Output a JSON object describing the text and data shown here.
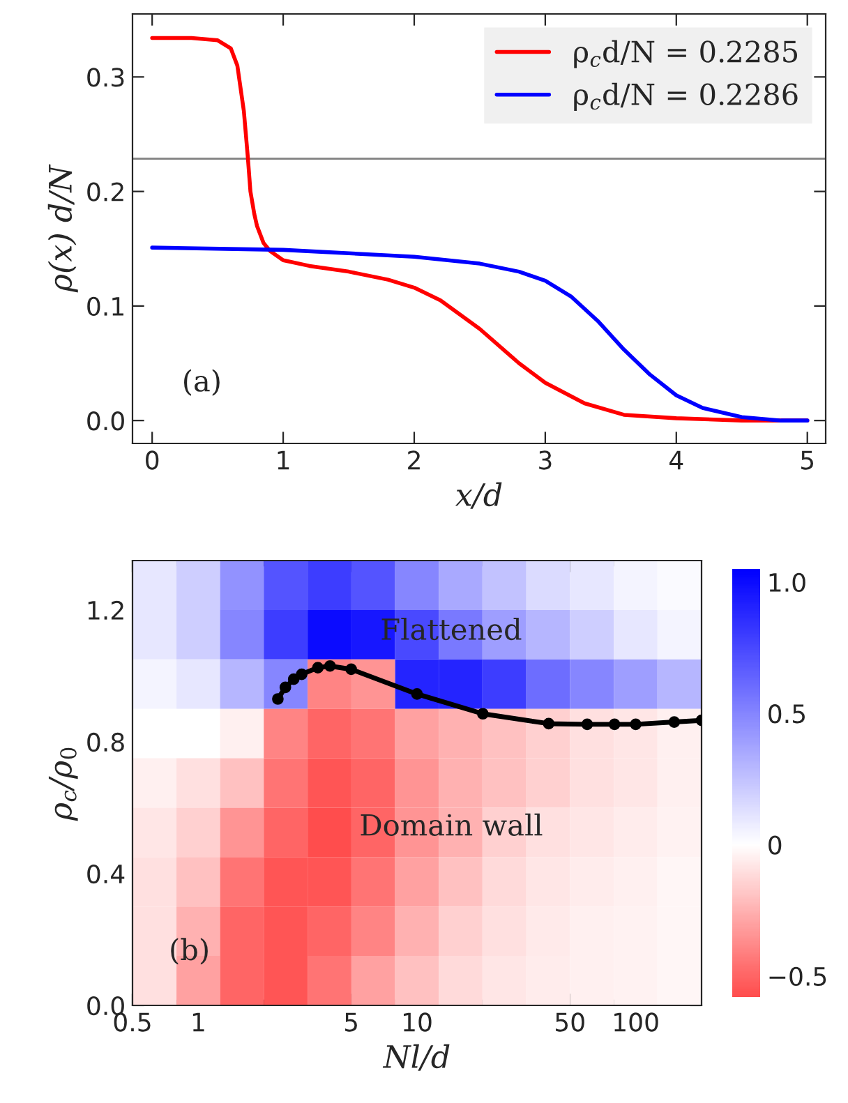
{
  "chart_data": [
    {
      "type": "line",
      "xlabel": "x/d",
      "ylabel": "ρ(x) d/N",
      "xlim": [
        -0.15,
        5.14
      ],
      "ylim": [
        -0.02,
        0.355
      ],
      "xticks": [
        0,
        1,
        2,
        3,
        4,
        5
      ],
      "yticks": [
        {
          "value": 0,
          "label": "0.0"
        },
        0.1,
        0.2,
        0.3
      ],
      "legend": "top right",
      "grid": false,
      "ref_lines": [
        {
          "axis": "y",
          "value": 0.2286,
          "color": "#808080"
        }
      ],
      "annotations": [
        "(a)"
      ],
      "series": [
        {
          "name": "ρ$_{c}$d/N = 0.2285",
          "color": "#ff0000",
          "x": [
            0,
            0.3,
            0.5,
            0.6,
            0.65,
            0.7,
            0.73,
            0.75,
            0.78,
            0.8,
            0.85,
            0.9,
            1.0,
            1.2,
            1.5,
            1.8,
            2.0,
            2.2,
            2.5,
            2.8,
            3.0,
            3.3,
            3.6,
            4.0,
            4.5,
            5.0
          ],
          "values": [
            0.334,
            0.334,
            0.332,
            0.325,
            0.31,
            0.27,
            0.23,
            0.2,
            0.18,
            0.17,
            0.155,
            0.148,
            0.14,
            0.135,
            0.13,
            0.123,
            0.116,
            0.105,
            0.08,
            0.05,
            0.033,
            0.015,
            0.005,
            0.002,
            0,
            0
          ]
        },
        {
          "name": "ρ$_{c}$d/N = 0.2286",
          "color": "#0000ff",
          "x": [
            0,
            1.0,
            2.0,
            2.5,
            2.8,
            3.0,
            3.2,
            3.4,
            3.6,
            3.8,
            4.0,
            4.2,
            4.5,
            4.8,
            5.0
          ],
          "values": [
            0.151,
            0.149,
            0.143,
            0.137,
            0.13,
            0.122,
            0.108,
            0.087,
            0.062,
            0.04,
            0.022,
            0.011,
            0.003,
            0,
            0
          ]
        }
      ]
    },
    {
      "type": "heatmap",
      "xlabel": "Nl/d",
      "ylabel": "ρ$_{c}$/ρ$_{0}$",
      "log": "x",
      "xlim": [
        0.5,
        200
      ],
      "ylim": [
        0,
        1.35
      ],
      "xticks": [
        0.5,
        1,
        5,
        10,
        50,
        100
      ],
      "yticks": [
        {
          "value": 0,
          "label": "0.0"
        },
        0.4,
        0.8,
        1.2
      ],
      "clim": [
        -0.58,
        1.05
      ],
      "cticks": [
        {
          "value": -0.5,
          "label": "−0.5"
        },
        0,
        0.5,
        {
          "value": 1,
          "label": "1.0"
        }
      ],
      "colors": [
        "#ff4d4d",
        "#ffffff",
        "#0000ff"
      ],
      "annotations": [
        "Flattened",
        "Domain wall",
        "(b)"
      ],
      "x": [
        0.631,
        1,
        1.58,
        2.51,
        3.98,
        6.31,
        10,
        15.8,
        25.1,
        39.8,
        63.1,
        100,
        158
      ],
      "y": [
        1.275,
        1.125,
        0.975,
        0.825,
        0.675,
        0.525,
        0.375,
        0.225,
        0.075
      ],
      "cells": [
        [
          0.1,
          0.2,
          0.45,
          0.7,
          0.8,
          0.7,
          0.5,
          0.35,
          0.25,
          0.15,
          0.1,
          0.05,
          0.02
        ],
        [
          0.1,
          0.2,
          0.5,
          0.8,
          1.0,
          0.95,
          0.75,
          0.55,
          0.4,
          0.3,
          0.2,
          0.1,
          0.05
        ],
        [
          0.05,
          0.1,
          0.3,
          0.5,
          -0.4,
          -0.35,
          0.9,
          0.9,
          0.8,
          0.6,
          0.5,
          0.4,
          0.3
        ],
        [
          0,
          0,
          -0.05,
          -0.4,
          -0.5,
          -0.45,
          -0.3,
          -0.25,
          -0.2,
          -0.15,
          -0.1,
          -0.08,
          -0.05
        ],
        [
          -0.05,
          -0.1,
          -0.2,
          -0.45,
          -0.55,
          -0.5,
          -0.35,
          -0.25,
          -0.2,
          -0.15,
          -0.1,
          -0.08,
          -0.05
        ],
        [
          -0.08,
          -0.15,
          -0.35,
          -0.5,
          -0.58,
          -0.5,
          -0.35,
          -0.25,
          -0.15,
          -0.1,
          -0.08,
          -0.06,
          -0.04
        ],
        [
          -0.1,
          -0.2,
          -0.45,
          -0.55,
          -0.55,
          -0.45,
          -0.3,
          -0.2,
          -0.12,
          -0.08,
          -0.06,
          -0.05,
          -0.03
        ],
        [
          -0.1,
          -0.25,
          -0.5,
          -0.55,
          -0.5,
          -0.4,
          -0.25,
          -0.15,
          -0.1,
          -0.07,
          -0.05,
          -0.04,
          -0.03
        ],
        [
          -0.1,
          -0.3,
          -0.5,
          -0.55,
          -0.45,
          -0.3,
          -0.2,
          -0.12,
          -0.08,
          -0.06,
          -0.05,
          -0.04,
          -0.03
        ]
      ],
      "series": [
        {
          "type": "line",
          "color": "#000000",
          "marker": "circle",
          "x": [
            2.31,
            2.5,
            2.73,
            2.97,
            3.52,
            4.0,
            5.0,
            10,
            20,
            40,
            60,
            80,
            100,
            150,
            200
          ],
          "values": [
            0.93,
            0.965,
            0.99,
            1.005,
            1.025,
            1.03,
            1.02,
            0.945,
            0.885,
            0.855,
            0.853,
            0.853,
            0.853,
            0.86,
            0.865
          ]
        }
      ]
    }
  ]
}
